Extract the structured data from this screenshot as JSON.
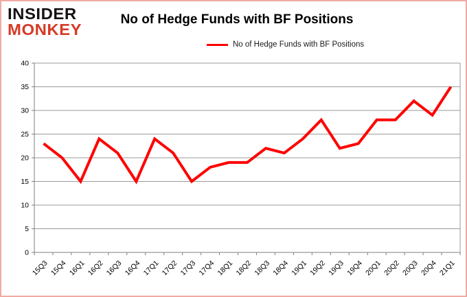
{
  "logo": {
    "line1": "INSIDER",
    "line2": "MONKEY",
    "line1_color": "#161213",
    "line2_color": "#d53b27"
  },
  "header": {
    "title": "No of Hedge Funds with BF Positions"
  },
  "legend": {
    "label": "No of Hedge Funds with BF Positions",
    "line_color": "#ff0000"
  },
  "chart_data": {
    "type": "line",
    "title": "No of Hedge Funds with BF Positions",
    "categories": [
      "15Q3",
      "15Q4",
      "16Q1",
      "16Q2",
      "16Q3",
      "16Q4",
      "17Q1",
      "17Q2",
      "17Q3",
      "17Q4",
      "18Q1",
      "18Q2",
      "18Q3",
      "18Q4",
      "19Q1",
      "19Q2",
      "19Q3",
      "19Q4",
      "20Q1",
      "20Q2",
      "20Q3",
      "20Q4",
      "21Q1"
    ],
    "series": [
      {
        "name": "No of Hedge Funds with BF Positions",
        "color": "#ff0000",
        "values": [
          23,
          20,
          15,
          24,
          21,
          15,
          24,
          21,
          15,
          18,
          19,
          19,
          22,
          21,
          24,
          28,
          22,
          23,
          28,
          28,
          32,
          29,
          35
        ]
      }
    ],
    "xlabel": "",
    "ylabel": "",
    "ylim": [
      0,
      40
    ],
    "ytick_step": 5,
    "grid": true,
    "grid_color": "#9a9a9a",
    "axis_color": "#7f7f7f",
    "tick_label_color": "#000000",
    "legend_position": "top"
  }
}
